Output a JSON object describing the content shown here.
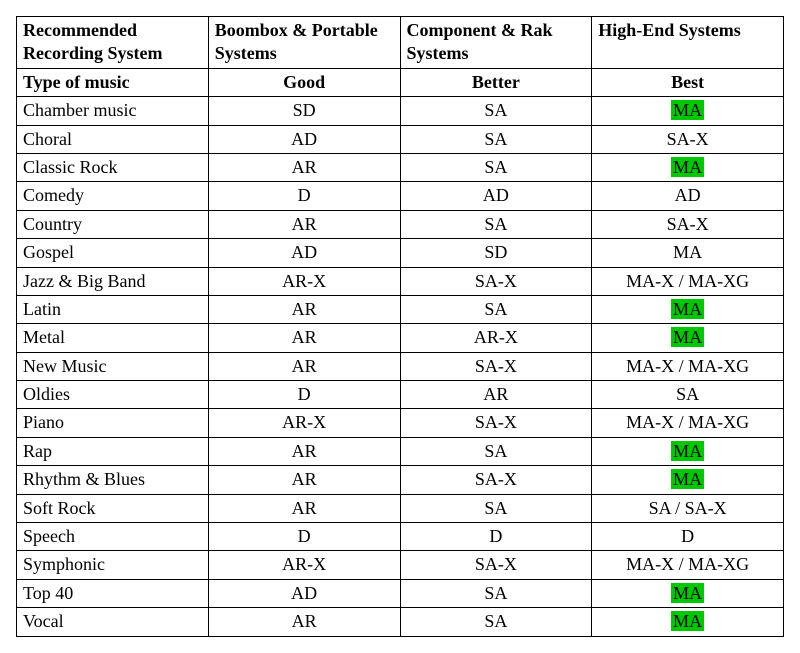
{
  "highlight_color": "#00c800",
  "header": {
    "row1": [
      "Recommended Recording System",
      "Boombox & Portable Systems",
      "Component & Rak Systems",
      "High-End Systems"
    ],
    "row2": [
      "Type of music",
      "Good",
      "Better",
      "Best"
    ]
  },
  "rows": [
    {
      "type": "Chamber music",
      "good": "SD",
      "better": "SA",
      "best": "MA",
      "best_hl": true
    },
    {
      "type": "Choral",
      "good": "AD",
      "better": "SA",
      "best": "SA-X",
      "best_hl": false
    },
    {
      "type": "Classic Rock",
      "good": "AR",
      "better": "SA",
      "best": "MA",
      "best_hl": true
    },
    {
      "type": "Comedy",
      "good": "D",
      "better": "AD",
      "best": "AD",
      "best_hl": false
    },
    {
      "type": "Country",
      "good": "AR",
      "better": "SA",
      "best": "SA-X",
      "best_hl": false
    },
    {
      "type": "Gospel",
      "good": "AD",
      "better": "SD",
      "best": "MA",
      "best_hl": false
    },
    {
      "type": "Jazz & Big Band",
      "good": "AR-X",
      "better": "SA-X",
      "best": "MA-X / MA-XG",
      "best_hl": false
    },
    {
      "type": "Latin",
      "good": "AR",
      "better": "SA",
      "best": "MA",
      "best_hl": true
    },
    {
      "type": "Metal",
      "good": "AR",
      "better": "AR-X",
      "best": "MA",
      "best_hl": true
    },
    {
      "type": "New Music",
      "good": "AR",
      "better": "SA-X",
      "best": "MA-X / MA-XG",
      "best_hl": false
    },
    {
      "type": "Oldies",
      "good": "D",
      "better": "AR",
      "best": "SA",
      "best_hl": false
    },
    {
      "type": "Piano",
      "good": "AR-X",
      "better": "SA-X",
      "best": "MA-X / MA-XG",
      "best_hl": false
    },
    {
      "type": "Rap",
      "good": "AR",
      "better": "SA",
      "best": "MA",
      "best_hl": true
    },
    {
      "type": "Rhythm & Blues",
      "good": "AR",
      "better": "SA-X",
      "best": "MA",
      "best_hl": true
    },
    {
      "type": "Soft Rock",
      "good": "AR",
      "better": "SA",
      "best": "SA / SA-X",
      "best_hl": false
    },
    {
      "type": "Speech",
      "good": "D",
      "better": "D",
      "best": "D",
      "best_hl": false
    },
    {
      "type": "Symphonic",
      "good": "AR-X",
      "better": "SA-X",
      "best": "MA-X / MA-XG",
      "best_hl": false
    },
    {
      "type": "Top 40",
      "good": "AD",
      "better": "SA",
      "best": "MA",
      "best_hl": true
    },
    {
      "type": "Vocal",
      "good": "AR",
      "better": "SA",
      "best": "MA",
      "best_hl": true
    }
  ]
}
